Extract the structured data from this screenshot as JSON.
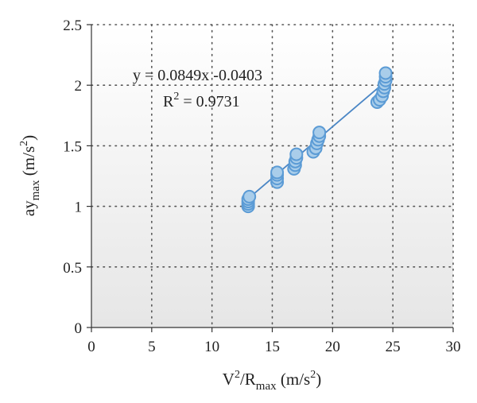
{
  "chart_data": {
    "type": "scatter",
    "title": "",
    "xlabel": {
      "main": "V",
      "sup1": "2",
      "mid": "/R",
      "sub": "max",
      "units": " (m/s",
      "sup2": "2",
      "end": ")"
    },
    "ylabel": {
      "main": "ay",
      "sub": "max",
      "units": " (m/s",
      "sup": "2",
      "end": ")"
    },
    "xlim": [
      0,
      30
    ],
    "ylim": [
      0,
      2.5
    ],
    "xticks": [
      "0",
      "5",
      "10",
      "15",
      "20",
      "25",
      "30"
    ],
    "yticks": [
      "0",
      "0.5",
      "1",
      "1.5",
      "2",
      "2.5"
    ],
    "grid": "dotted",
    "annotations": {
      "equation": "y = 0.0849x -0.0403",
      "r2_prefix": "R",
      "r2_sup": "2",
      "r2_value": " = 0.9731"
    },
    "trendline": {
      "slope": 0.0849,
      "intercept": -0.0403,
      "x_range": [
        13,
        24.5
      ]
    },
    "colors": {
      "marker_fill": "#a9cdea",
      "marker_stroke": "#5b9bd5",
      "trend": "#4a86c5"
    },
    "series": [
      {
        "points": [
          [
            13.0,
            1.0
          ],
          [
            13.0,
            1.02
          ],
          [
            13.0,
            1.04
          ],
          [
            13.0,
            1.06
          ],
          [
            13.1,
            1.08
          ],
          [
            15.4,
            1.2
          ],
          [
            15.4,
            1.23
          ],
          [
            15.4,
            1.26
          ],
          [
            15.4,
            1.28
          ],
          [
            16.8,
            1.31
          ],
          [
            16.9,
            1.34
          ],
          [
            16.9,
            1.37
          ],
          [
            17.0,
            1.4
          ],
          [
            17.0,
            1.43
          ],
          [
            18.4,
            1.45
          ],
          [
            18.6,
            1.48
          ],
          [
            18.7,
            1.52
          ],
          [
            18.8,
            1.55
          ],
          [
            18.9,
            1.58
          ],
          [
            18.9,
            1.61
          ],
          [
            23.7,
            1.86
          ],
          [
            23.9,
            1.88
          ],
          [
            24.1,
            1.91
          ],
          [
            24.2,
            1.95
          ],
          [
            24.3,
            1.98
          ],
          [
            24.3,
            2.01
          ],
          [
            24.4,
            2.04
          ],
          [
            24.4,
            2.07
          ],
          [
            24.4,
            2.1
          ]
        ]
      }
    ]
  }
}
